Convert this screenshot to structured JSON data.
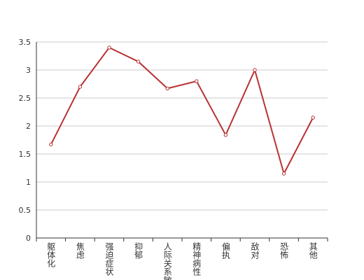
{
  "chart_data": {
    "type": "line",
    "categories": [
      "躯体化",
      "焦虑",
      "强迫症状",
      "抑郁",
      "人际关系敏感",
      "精神病性",
      "偏执",
      "敌对",
      "恐怖",
      "其他"
    ],
    "series": [
      {
        "color": "#b83232",
        "values": [
          1.67,
          2.7,
          3.4,
          3.15,
          2.67,
          2.8,
          1.84,
          3.0,
          1.15,
          2.15
        ]
      }
    ],
    "ylim": [
      0,
      3.5
    ],
    "yticks": [
      0,
      0.5,
      1,
      1.5,
      2,
      2.5,
      3,
      3.5
    ],
    "grid": true
  }
}
